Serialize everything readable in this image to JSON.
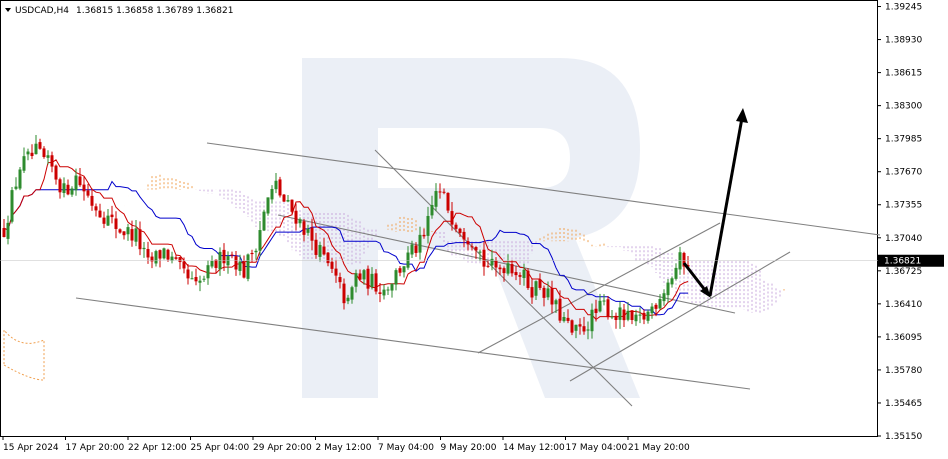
{
  "chart_data": {
    "type": "candlestick",
    "symbol": "USDCAD",
    "timeframe": "H4",
    "header": {
      "symbol_tf": "USDCAD,H4",
      "ohlc": "1.36815 1.36858 1.36789 1.36821"
    },
    "current_price": "1.36821",
    "ylim": [
      1.3515,
      1.3925
    ],
    "y_ticks": [
      "1.39245",
      "1.38930",
      "1.38615",
      "1.38300",
      "1.37985",
      "1.37670",
      "1.37355",
      "1.37040",
      "1.36725",
      "1.36410",
      "1.36095",
      "1.35780",
      "1.35465",
      "1.35150"
    ],
    "x_ticks": [
      "15 Apr 2024",
      "17 Apr 20:00",
      "22 Apr 12:00",
      "25 Apr 04:00",
      "29 Apr 20:00",
      "2 May 12:00",
      "7 May 04:00",
      "9 May 20:00",
      "14 May 12:00",
      "17 May 04:00",
      "21 May 20:00"
    ],
    "price_path": [
      [
        0,
        1.3712
      ],
      [
        4,
        1.3772
      ],
      [
        8,
        1.3785
      ],
      [
        12,
        1.377
      ],
      [
        15,
        1.3748
      ],
      [
        18,
        1.3762
      ],
      [
        22,
        1.3738
      ],
      [
        26,
        1.3722
      ],
      [
        29,
        1.3712
      ],
      [
        33,
        1.3706
      ],
      [
        36,
        1.3678
      ],
      [
        40,
        1.3692
      ],
      [
        44,
        1.3672
      ],
      [
        48,
        1.3656
      ],
      [
        52,
        1.3675
      ],
      [
        56,
        1.3692
      ],
      [
        60,
        1.3672
      ],
      [
        63,
        1.37
      ],
      [
        66,
        1.374
      ],
      [
        68,
        1.3754
      ],
      [
        70,
        1.3738
      ],
      [
        73,
        1.3725
      ],
      [
        76,
        1.3708
      ],
      [
        79,
        1.369
      ],
      [
        82,
        1.367
      ],
      [
        86,
        1.364
      ],
      [
        88,
        1.3668
      ],
      [
        92,
        1.3662
      ],
      [
        95,
        1.3655
      ],
      [
        98,
        1.367
      ],
      [
        102,
        1.369
      ],
      [
        105,
        1.3702
      ],
      [
        108,
        1.3748
      ],
      [
        110,
        1.3741
      ],
      [
        112,
        1.3725
      ],
      [
        115,
        1.371
      ],
      [
        118,
        1.37
      ],
      [
        120,
        1.368
      ],
      [
        123,
        1.3673
      ],
      [
        126,
        1.3681
      ],
      [
        129,
        1.367
      ],
      [
        132,
        1.3656
      ],
      [
        134,
        1.366
      ],
      [
        137,
        1.3642
      ],
      [
        140,
        1.3625
      ],
      [
        142,
        1.3612
      ],
      [
        144,
        1.3615
      ],
      [
        147,
        1.3628
      ],
      [
        150,
        1.364
      ],
      [
        152,
        1.3632
      ],
      [
        155,
        1.3628
      ],
      [
        158,
        1.3622
      ],
      [
        161,
        1.3632
      ],
      [
        164,
        1.365
      ],
      [
        167,
        1.3668
      ],
      [
        169,
        1.3682
      ],
      [
        171,
        1.3682
      ]
    ],
    "colors": {
      "bull": "#2e8b2e",
      "bear": "#cc0000",
      "kijun": "#0000cc",
      "tenkan": "#cc0000",
      "cloud_orange": "#f0a050",
      "cloud_purple": "#c8a8dc",
      "channel": "#808080",
      "arrow": "#000000",
      "watermark": "#e8ecf4"
    }
  }
}
